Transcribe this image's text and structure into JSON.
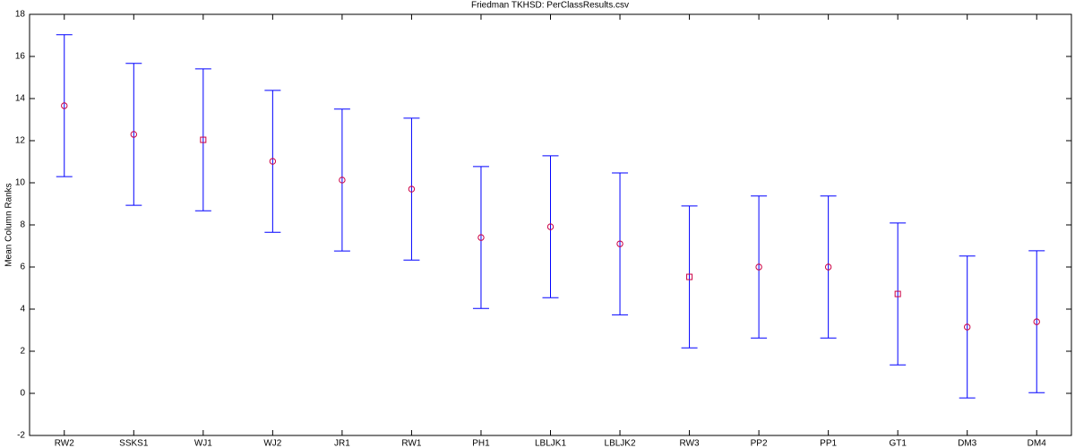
{
  "chart_data": {
    "type": "errorbar",
    "title": "Friedman TKHSD: PerClassResults.csv",
    "ylabel": "Mean Column Ranks",
    "categories": [
      "RW2",
      "SSKS1",
      "WJ1",
      "WJ2",
      "JR1",
      "RW1",
      "PH1",
      "LBLJK1",
      "LBLJK2",
      "RW3",
      "PP2",
      "PP1",
      "GT1",
      "DM3",
      "DM4"
    ],
    "values": [
      13.66,
      12.3,
      12.04,
      11.02,
      10.13,
      9.7,
      7.4,
      7.91,
      7.1,
      5.53,
      6.0,
      6.0,
      4.72,
      3.15,
      3.4
    ],
    "errors": [
      3.37,
      3.37,
      3.37,
      3.37,
      3.37,
      3.37,
      3.37,
      3.37,
      3.37,
      3.37,
      3.37,
      3.37,
      3.37,
      3.37,
      3.37
    ],
    "markers": [
      "circle",
      "circle",
      "square",
      "circle",
      "circle",
      "circle",
      "circle",
      "circle",
      "circle",
      "square",
      "circle",
      "circle",
      "square",
      "circle",
      "circle"
    ],
    "bar_color": "#0000ff",
    "marker_color": "#cc0044",
    "ylim": [
      -2,
      18
    ],
    "yticks": [
      -2,
      0,
      2,
      4,
      6,
      8,
      10,
      12,
      14,
      16,
      18
    ],
    "grid": false
  }
}
